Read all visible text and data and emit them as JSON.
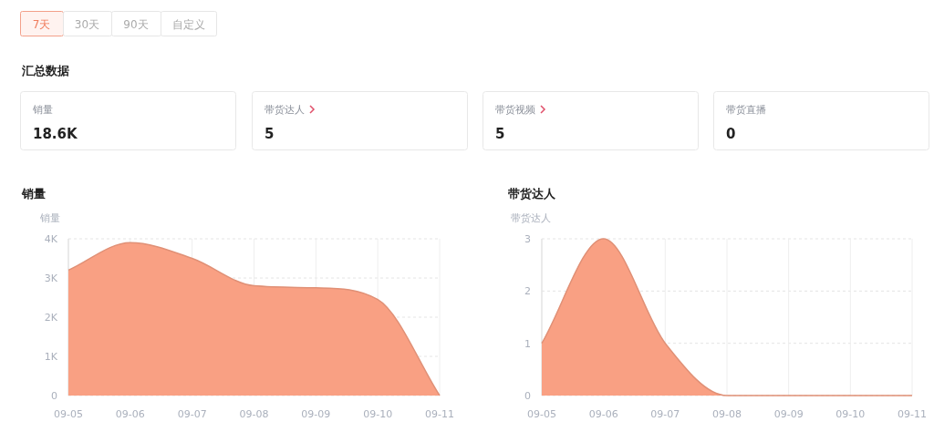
{
  "chart_data": [
    {
      "type": "other",
      "title": "汇总数据",
      "annotations": [
        "7天",
        "30天",
        "90天",
        "自定义",
        "销量",
        "18.6K",
        "带货达人",
        "5",
        "带货视频",
        "5",
        "带货直播",
        "0"
      ]
    },
    {
      "type": "area",
      "title": "销量",
      "ylabel": "销量",
      "categories": [
        "09-05",
        "09-06",
        "09-07",
        "09-08",
        "09-09",
        "09-10",
        "09-11"
      ],
      "ylim": [
        0,
        4000
      ],
      "yticks": [
        {
          "value": 0,
          "label": "0"
        },
        {
          "value": 1000,
          "label": "1K"
        },
        {
          "value": 2000,
          "label": "2K"
        },
        {
          "value": 3000,
          "label": "3K"
        },
        {
          "value": 4000,
          "label": "4K"
        }
      ],
      "grid": true,
      "series": [
        {
          "color": "#f9a083",
          "values": [
            3200,
            3900,
            3500,
            2800,
            2750,
            2450,
            0
          ]
        }
      ]
    },
    {
      "type": "area",
      "title": "带货达人",
      "ylabel": "带货达人",
      "categories": [
        "09-05",
        "09-06",
        "09-07",
        "09-08",
        "09-09",
        "09-10",
        "09-11"
      ],
      "ylim": [
        0,
        3
      ],
      "yticks": [
        0,
        1,
        2,
        3
      ],
      "grid": true,
      "series": [
        {
          "color": "#f9a083",
          "values": [
            1,
            3,
            1,
            0,
            0,
            0,
            0
          ]
        }
      ]
    }
  ]
}
